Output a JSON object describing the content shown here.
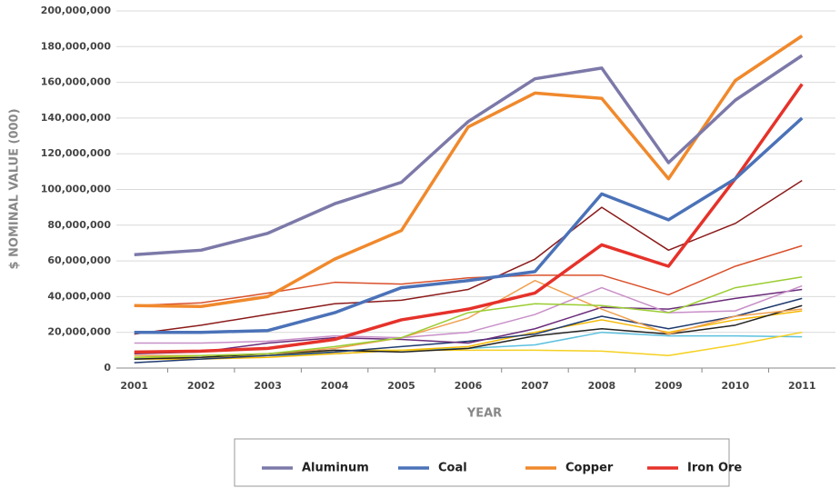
{
  "chart_data": {
    "type": "line",
    "x_label": "YEAR",
    "y_label": "$ NOMINAL VALUE (000)",
    "categories": [
      "2001",
      "2002",
      "2003",
      "2004",
      "2005",
      "2006",
      "2007",
      "2008",
      "2009",
      "2010",
      "2011"
    ],
    "series": [
      {
        "name": "Aluminum",
        "color": "#7c79a9",
        "values": [
          63500000,
          66000000,
          75500000,
          92000000,
          104000000,
          138000000,
          162000000,
          168000000,
          115000000,
          150000000,
          175000000
        ]
      },
      {
        "name": "Coal",
        "color": "#4b72b8",
        "values": [
          20000000,
          20000000,
          21000000,
          31000000,
          45000000,
          49000000,
          54000000,
          97500000,
          83000000,
          106000000,
          140000000
        ]
      },
      {
        "name": "Copper",
        "color": "#f0892c",
        "values": [
          35000000,
          34500000,
          40000000,
          61000000,
          77000000,
          135000000,
          154000000,
          151000000,
          106000000,
          161000000,
          186000000
        ]
      },
      {
        "name": "Iron Ore",
        "color": "#e5322a",
        "values": [
          9000000,
          9500000,
          11000000,
          16000000,
          27000000,
          33000000,
          42000000,
          69000000,
          57000000,
          106000000,
          159000000
        ]
      },
      {
        "color": "#8b1a1a",
        "values": [
          19000000,
          24000000,
          30000000,
          36000000,
          38000000,
          44000000,
          61000000,
          90000000,
          66000000,
          81000000,
          105000000
        ]
      },
      {
        "color": "#d9502a",
        "values": [
          35000000,
          36500000,
          42000000,
          48000000,
          47000000,
          50500000,
          52000000,
          52000000,
          41000000,
          57000000,
          68500000
        ]
      },
      {
        "color": "#9acd32",
        "values": [
          6000000,
          7000000,
          8000000,
          12000000,
          17000000,
          31000000,
          36000000,
          35000000,
          31000000,
          45000000,
          51000000
        ]
      },
      {
        "color": "#c88fc8",
        "values": [
          14000000,
          14000000,
          15000000,
          18000000,
          17000000,
          20000000,
          30000000,
          45000000,
          31000000,
          32000000,
          46000000
        ]
      },
      {
        "color": "#f0a050",
        "values": [
          7000000,
          7000000,
          8000000,
          11000000,
          17000000,
          28000000,
          49000000,
          33000000,
          19000000,
          29000000,
          33000000
        ]
      },
      {
        "color": "#6a2c7a",
        "values": [
          8000000,
          9000000,
          14000000,
          17000000,
          16000000,
          14000000,
          22000000,
          34000000,
          33000000,
          39000000,
          44000000
        ]
      },
      {
        "color": "#1f3a6e",
        "values": [
          3000000,
          5000000,
          7000000,
          9000000,
          12000000,
          15000000,
          19000000,
          29000000,
          22000000,
          29000000,
          39000000
        ]
      },
      {
        "color": "#222222",
        "values": [
          5000000,
          6000000,
          8000000,
          10000000,
          9000000,
          11000000,
          18000000,
          22000000,
          19000000,
          24000000,
          35000000
        ]
      },
      {
        "color": "#f5d020",
        "values": [
          6000000,
          6000000,
          7000000,
          10000000,
          10000000,
          10000000,
          10000000,
          9500000,
          7000000,
          13000000,
          20000000
        ]
      },
      {
        "color": "#f5b800",
        "values": [
          5000000,
          5000000,
          6000000,
          8000000,
          10000000,
          12000000,
          20000000,
          27000000,
          20000000,
          27000000,
          32000000
        ]
      },
      {
        "color": "#5bc0de",
        "values": [
          5000000,
          6000000,
          7000000,
          8000000,
          10000000,
          11000000,
          13000000,
          20000000,
          18000000,
          18000000,
          17500000
        ]
      }
    ],
    "ylim": [
      0,
      200000000
    ],
    "yticks": [
      0,
      {
        "value": 20000000,
        "label": "20,000,000"
      },
      {
        "value": 40000000,
        "label": "40,000,000"
      },
      {
        "value": 60000000,
        "label": "60,000,000"
      },
      {
        "value": 80000000,
        "label": "80,000,000"
      },
      {
        "value": 100000000,
        "label": "100,000,000"
      },
      {
        "value": 120000000,
        "label": "120,000,000"
      },
      {
        "value": 140000000,
        "label": "140,000,000"
      },
      {
        "value": 160000000,
        "label": "160,000,000"
      },
      {
        "value": 180000000,
        "label": "180,000,000"
      },
      {
        "value": 200000000,
        "label": "200,000,000"
      }
    ],
    "grid": true
  }
}
